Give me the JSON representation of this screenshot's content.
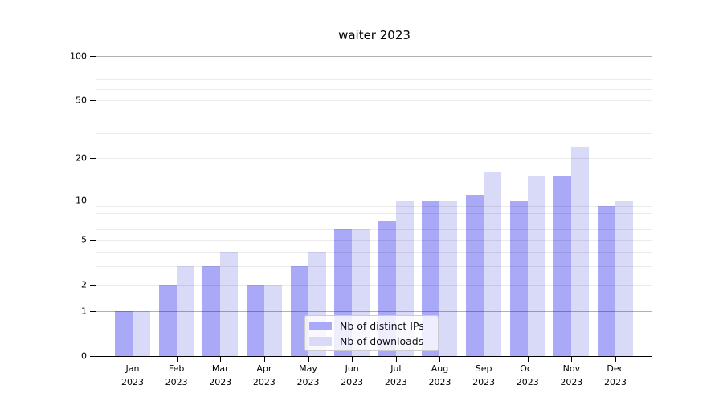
{
  "title": "waiter 2023",
  "colors": {
    "distinct_ips": "#a9a9f8",
    "downloads": "#d9d9f8",
    "grid_major": "rgba(0,0,0,0.30)",
    "grid_minor": "rgba(0,0,0,0.08)",
    "axis": "#000000",
    "text": "#000000",
    "legend_border": "#cccccc"
  },
  "chart_data": {
    "type": "bar",
    "title": "waiter 2023",
    "categories": [
      {
        "month": "Jan",
        "year": "2023"
      },
      {
        "month": "Feb",
        "year": "2023"
      },
      {
        "month": "Mar",
        "year": "2023"
      },
      {
        "month": "Apr",
        "year": "2023"
      },
      {
        "month": "May",
        "year": "2023"
      },
      {
        "month": "Jun",
        "year": "2023"
      },
      {
        "month": "Jul",
        "year": "2023"
      },
      {
        "month": "Aug",
        "year": "2023"
      },
      {
        "month": "Sep",
        "year": "2023"
      },
      {
        "month": "Oct",
        "year": "2023"
      },
      {
        "month": "Nov",
        "year": "2023"
      },
      {
        "month": "Dec",
        "year": "2023"
      }
    ],
    "series": [
      {
        "name": "Nb of distinct IPs",
        "color_key": "distinct_ips",
        "values": [
          1,
          2,
          3,
          2,
          3,
          6,
          7,
          10,
          11,
          10,
          15,
          9
        ]
      },
      {
        "name": "Nb of downloads",
        "color_key": "downloads",
        "values": [
          1,
          3,
          4,
          2,
          4,
          6,
          10,
          10,
          16,
          15,
          24,
          10
        ]
      }
    ],
    "yscale": "log1p",
    "ylim": [
      0,
      115
    ],
    "yticks": [
      0,
      1,
      2,
      5,
      10,
      20,
      50,
      100
    ],
    "major_gridlines": [
      1,
      10,
      100
    ],
    "minor_gridlines": [
      2,
      3,
      4,
      5,
      6,
      7,
      8,
      9,
      20,
      30,
      40,
      50,
      60,
      70,
      80,
      90
    ],
    "grid": true,
    "legend_position": "lower-center"
  }
}
